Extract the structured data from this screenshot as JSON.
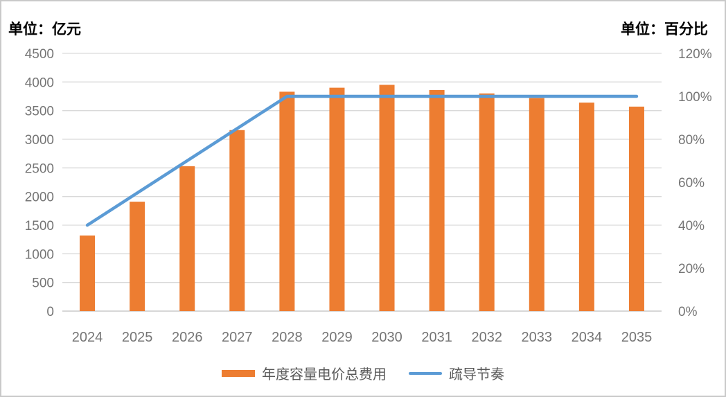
{
  "page": {
    "left_unit_label": "单位：亿元",
    "right_unit_label": "单位：百分比"
  },
  "legend": {
    "bar_label": "年度容量电价总费用",
    "line_label": "疏导节奏"
  },
  "colors": {
    "bar": "#ED7D31",
    "line": "#5B9BD5",
    "grid": "#D9D9D9",
    "axis_line": "#BFBFBF",
    "tick_text": "#757575",
    "legend_text": "#595959",
    "unit_text": "#000000"
  },
  "chart_data": {
    "type": "bar",
    "subtype": "combo-bar-line",
    "categories": [
      "2024",
      "2025",
      "2026",
      "2027",
      "2028",
      "2029",
      "2030",
      "2031",
      "2032",
      "2033",
      "2034",
      "2035"
    ],
    "series": [
      {
        "name": "年度容量电价总费用",
        "type": "bar",
        "axis": "left",
        "color": "#ED7D31",
        "values": [
          1320,
          1910,
          2530,
          3160,
          3830,
          3900,
          3950,
          3860,
          3800,
          3720,
          3640,
          3570
        ]
      },
      {
        "name": "疏导节奏",
        "type": "line",
        "axis": "right",
        "color": "#5B9BD5",
        "values": [
          40,
          55,
          70,
          85,
          100,
          100,
          100,
          100,
          100,
          100,
          100,
          100
        ]
      }
    ],
    "left_axis": {
      "unit": "亿元",
      "min": 0,
      "max": 4500,
      "step": 500,
      "tick_labels": [
        "0",
        "500",
        "1000",
        "1500",
        "2000",
        "2500",
        "3000",
        "3500",
        "4000",
        "4500"
      ]
    },
    "right_axis": {
      "unit": "百分比",
      "min": 0,
      "max": 120,
      "step": 20,
      "tick_labels": [
        "0%",
        "20%",
        "40%",
        "60%",
        "80%",
        "100%",
        "120%"
      ]
    },
    "grid": true,
    "legend_position": "bottom"
  }
}
